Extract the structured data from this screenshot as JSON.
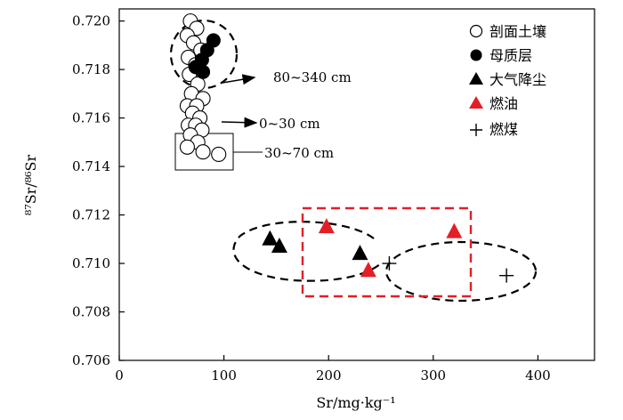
{
  "chart_data": {
    "type": "scatter",
    "xlabel": "Sr/mg·kg⁻¹",
    "ylabel": "⁸⁷Sr/⁸⁶Sr",
    "xlim": [
      0,
      450
    ],
    "ylim": [
      0.706,
      0.7205
    ],
    "x_ticks": [
      0,
      100,
      200,
      300,
      400
    ],
    "x_tick_labels": [
      "0",
      "100",
      "200",
      "300",
      "400"
    ],
    "y_ticks": [
      0.706,
      0.708,
      0.71,
      0.712,
      0.714,
      0.716,
      0.718,
      0.72
    ],
    "y_tick_labels": [
      "0.706",
      "0.708",
      "0.710",
      "0.712",
      "0.714",
      "0.716",
      "0.718",
      "0.720"
    ],
    "legend_position": "top-right",
    "series": [
      {
        "name": "剖面土壤",
        "marker": "open-circle",
        "color": "#000000",
        "points": [
          {
            "x": 68,
            "y": 0.72
          },
          {
            "x": 74,
            "y": 0.7197
          },
          {
            "x": 65,
            "y": 0.7194
          },
          {
            "x": 71,
            "y": 0.7191
          },
          {
            "x": 78,
            "y": 0.7188
          },
          {
            "x": 66,
            "y": 0.7185
          },
          {
            "x": 73,
            "y": 0.7182
          },
          {
            "x": 67,
            "y": 0.7178
          },
          {
            "x": 75,
            "y": 0.7174
          },
          {
            "x": 69,
            "y": 0.717
          },
          {
            "x": 80,
            "y": 0.7168
          },
          {
            "x": 65,
            "y": 0.7165
          },
          {
            "x": 74,
            "y": 0.7165
          },
          {
            "x": 70,
            "y": 0.7162
          },
          {
            "x": 77,
            "y": 0.716
          },
          {
            "x": 66,
            "y": 0.7157
          },
          {
            "x": 73,
            "y": 0.7157
          },
          {
            "x": 79,
            "y": 0.7155
          },
          {
            "x": 68,
            "y": 0.7153
          },
          {
            "x": 75,
            "y": 0.715
          },
          {
            "x": 65,
            "y": 0.7148
          },
          {
            "x": 80,
            "y": 0.7146
          },
          {
            "x": 95,
            "y": 0.7145
          }
        ]
      },
      {
        "name": "母质层",
        "marker": "filled-circle",
        "color": "#000000",
        "points": [
          {
            "x": 90,
            "y": 0.7192
          },
          {
            "x": 84,
            "y": 0.7188
          },
          {
            "x": 79,
            "y": 0.7184
          },
          {
            "x": 73,
            "y": 0.7181
          },
          {
            "x": 80,
            "y": 0.7179
          }
        ]
      },
      {
        "name": "大气降尘",
        "marker": "filled-triangle",
        "color": "#000000",
        "points": [
          {
            "x": 144,
            "y": 0.711
          },
          {
            "x": 153,
            "y": 0.7107
          },
          {
            "x": 230,
            "y": 0.7104
          }
        ]
      },
      {
        "name": "燃油",
        "marker": "filled-triangle",
        "color": "#e21f26",
        "points": [
          {
            "x": 198,
            "y": 0.7115
          },
          {
            "x": 238,
            "y": 0.7097
          },
          {
            "x": 320,
            "y": 0.7113
          }
        ]
      },
      {
        "name": "燃煤",
        "marker": "plus",
        "color": "#000000",
        "points": [
          {
            "x": 258,
            "y": 0.71
          },
          {
            "x": 370,
            "y": 0.7095
          }
        ]
      }
    ],
    "annotations": [
      {
        "text": "80~340 cm",
        "arrow_from": {
          "x": 99,
          "y": 0.7177
        },
        "arrow_to": {
          "x": 130,
          "y": 0.718
        }
      },
      {
        "text": "0~30 cm",
        "arrow_from": {
          "x": 98,
          "y": 0.7161
        },
        "arrow_to": {
          "x": 132,
          "y": 0.716
        }
      },
      {
        "text": "30~70 cm"
      }
    ]
  }
}
